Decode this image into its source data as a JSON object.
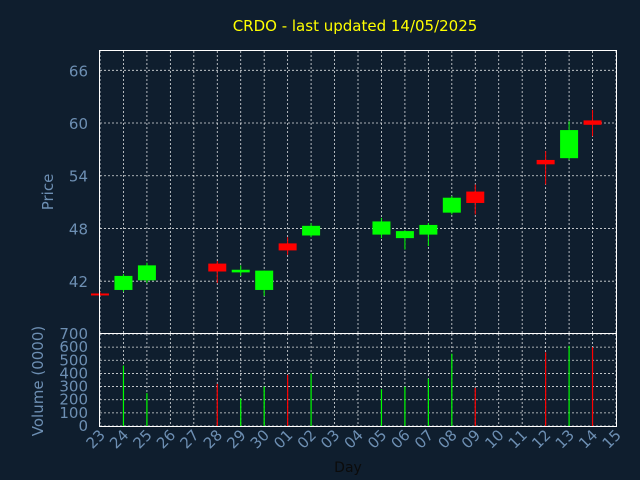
{
  "chart_data": {
    "type": "candlestick",
    "title": "CRDO - last updated 14/05/2025",
    "price_panel": {
      "ylabel": "Price",
      "yticks": [
        42,
        48,
        54,
        60,
        66
      ],
      "ylim": [
        36.1,
        68.2
      ]
    },
    "volume_panel": {
      "ylabel": "Volume (0000)",
      "yticks": [
        0,
        100,
        200,
        300,
        400,
        500,
        600,
        700
      ],
      "ylim": [
        0,
        700
      ]
    },
    "xlabel": "Day",
    "x_tick_labels": [
      "23",
      "24",
      "25",
      "26",
      "27",
      "28",
      "29",
      "30",
      "01",
      "02",
      "03",
      "04",
      "05",
      "06",
      "07",
      "08",
      "09",
      "10",
      "11",
      "12",
      "13",
      "14",
      "15"
    ],
    "candles": [
      {
        "day": "23",
        "open": 40.6,
        "high": 40.8,
        "low": 40.5,
        "close": 40.5,
        "volume": 0
      },
      {
        "day": "24",
        "open": 41.0,
        "high": 42.8,
        "low": 40.8,
        "close": 42.6,
        "volume": 460
      },
      {
        "day": "25",
        "open": 42.1,
        "high": 44.1,
        "low": 41.8,
        "close": 43.8,
        "volume": 250
      },
      {
        "day": "28",
        "open": 44.0,
        "high": 44.3,
        "low": 41.8,
        "close": 43.1,
        "volume": 320
      },
      {
        "day": "29",
        "open": 43.0,
        "high": 43.8,
        "low": 42.6,
        "close": 43.3,
        "volume": 210
      },
      {
        "day": "30",
        "open": 41.0,
        "high": 43.2,
        "low": 40.3,
        "close": 43.2,
        "volume": 300
      },
      {
        "day": "01",
        "open": 46.3,
        "high": 47.0,
        "low": 45.0,
        "close": 45.5,
        "volume": 390
      },
      {
        "day": "02",
        "open": 47.2,
        "high": 48.6,
        "low": 47.0,
        "close": 48.3,
        "volume": 400
      },
      {
        "day": "05",
        "open": 47.3,
        "high": 49.2,
        "low": 46.9,
        "close": 48.8,
        "volume": 280
      },
      {
        "day": "06",
        "open": 46.9,
        "high": 47.8,
        "low": 45.6,
        "close": 47.7,
        "volume": 300
      },
      {
        "day": "07",
        "open": 47.3,
        "high": 48.6,
        "low": 46.0,
        "close": 48.4,
        "volume": 360
      },
      {
        "day": "08",
        "open": 49.8,
        "high": 51.7,
        "low": 49.6,
        "close": 51.5,
        "volume": 550
      },
      {
        "day": "09",
        "open": 52.2,
        "high": 53.0,
        "low": 49.6,
        "close": 50.9,
        "volume": 290
      },
      {
        "day": "12",
        "open": 55.8,
        "high": 56.8,
        "low": 53.0,
        "close": 55.3,
        "volume": 560
      },
      {
        "day": "13",
        "open": 56.0,
        "high": 60.2,
        "low": 55.8,
        "close": 59.2,
        "volume": 610
      },
      {
        "day": "14",
        "open": 60.3,
        "high": 61.5,
        "low": 58.5,
        "close": 59.8,
        "volume": 600
      }
    ],
    "colors": {
      "up": "#00ff00",
      "down": "#ff0000",
      "background": "#0f1e2e",
      "text": "#6d8fb3",
      "title": "#ffff00",
      "axis": "#ffffff",
      "grid": "#ffffff"
    },
    "grid": true
  }
}
